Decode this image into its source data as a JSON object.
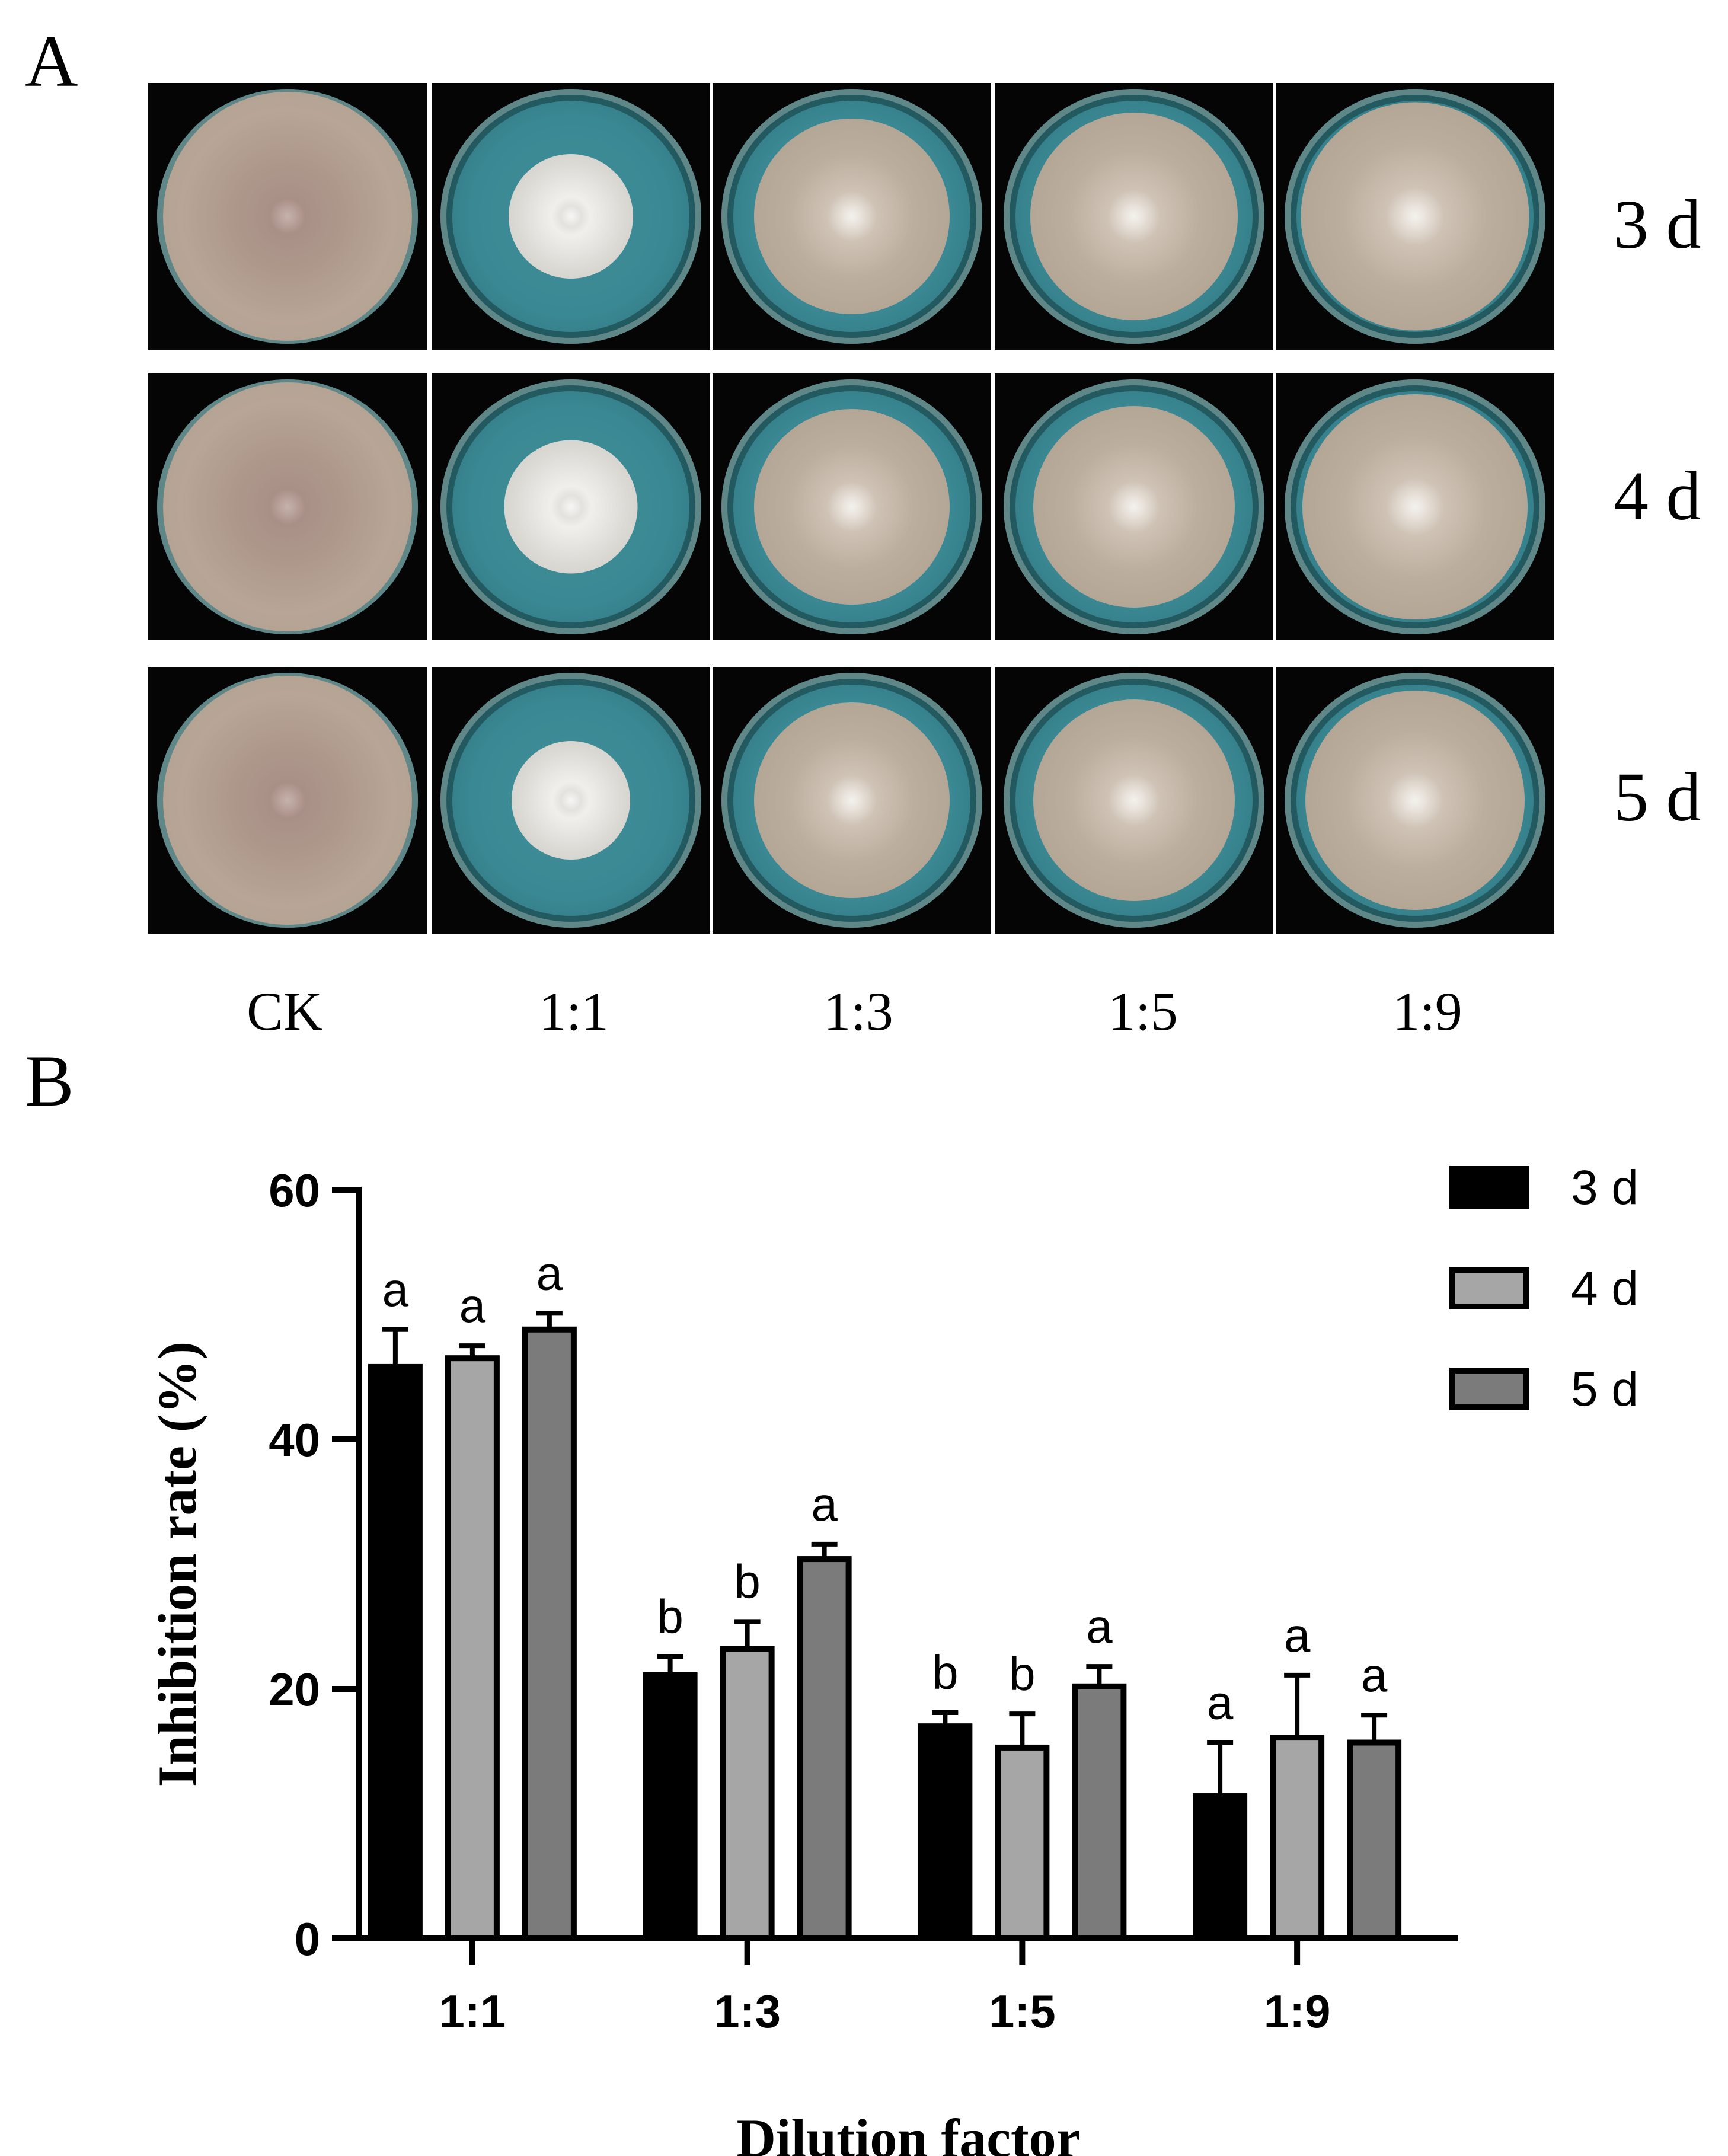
{
  "panel_a": {
    "label": "A",
    "rows": [
      "3 d",
      "4 d",
      "5 d"
    ],
    "columns": [
      "CK",
      "1:1",
      "1:3",
      "1:5",
      "1:9"
    ]
  },
  "panel_b": {
    "label": "B"
  },
  "chart_data": {
    "type": "bar",
    "categories": [
      "1:1",
      "1:3",
      "1:5",
      "1:9"
    ],
    "series": [
      {
        "name": "3 d",
        "color": "#000000",
        "values": [
          45.8,
          21.1,
          17.0,
          11.4
        ],
        "errors": [
          3.0,
          1.5,
          1.1,
          4.3
        ],
        "letters": [
          "a",
          "b",
          "b",
          "a"
        ]
      },
      {
        "name": "4 d",
        "color": "#a6a6a6",
        "values": [
          46.5,
          23.2,
          15.3,
          16.1
        ],
        "errors": [
          1.0,
          2.2,
          2.7,
          5.0
        ],
        "letters": [
          "a",
          "b",
          "b",
          "a"
        ]
      },
      {
        "name": "5 d",
        "color": "#7b7b7b",
        "values": [
          48.8,
          30.4,
          20.2,
          15.7
        ],
        "errors": [
          1.3,
          1.2,
          1.6,
          2.2
        ],
        "letters": [
          "a",
          "a",
          "a",
          "a"
        ]
      }
    ],
    "xlabel": "Dilution factor",
    "ylabel": "Inhibition rate (%)",
    "ylim": [
      0,
      60
    ],
    "yticks": [
      0,
      20,
      40,
      60
    ],
    "legend": "top-right",
    "grid": false
  }
}
